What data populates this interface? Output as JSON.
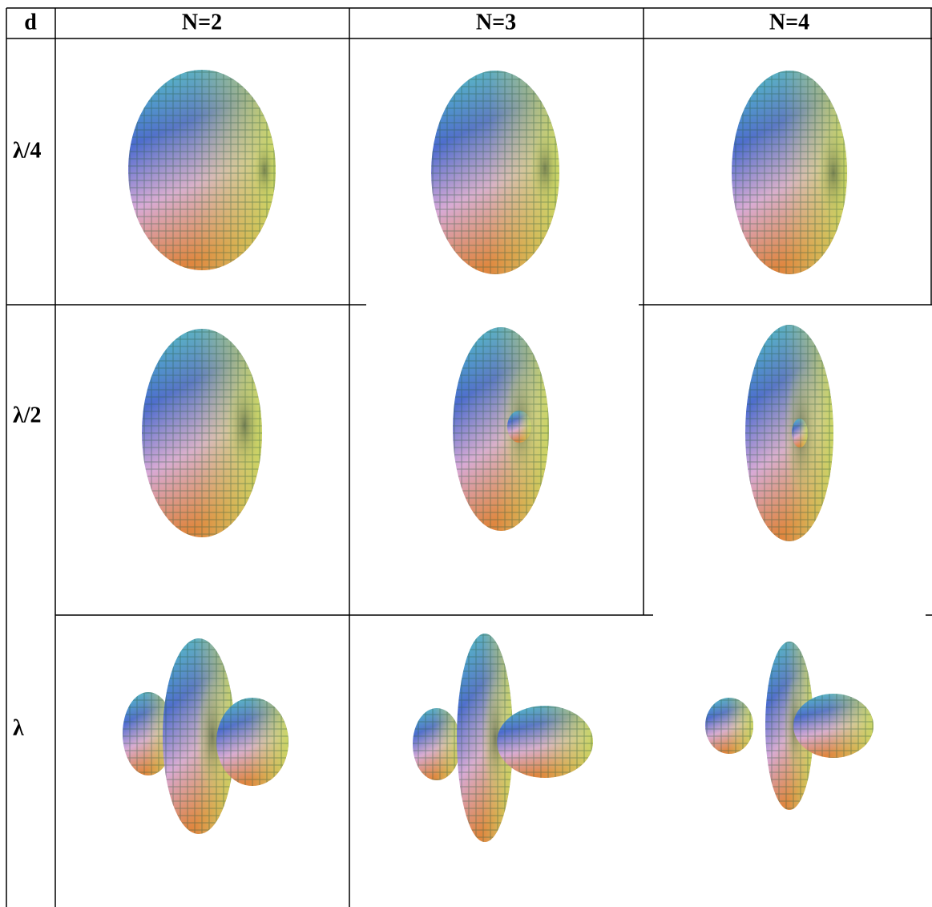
{
  "table": {
    "header": [
      "d",
      "N=2",
      "N=3",
      "N=4"
    ],
    "rows": [
      [
        "λ/4"
      ],
      [
        "λ/2"
      ],
      [
        "λ"
      ]
    ]
  }
}
